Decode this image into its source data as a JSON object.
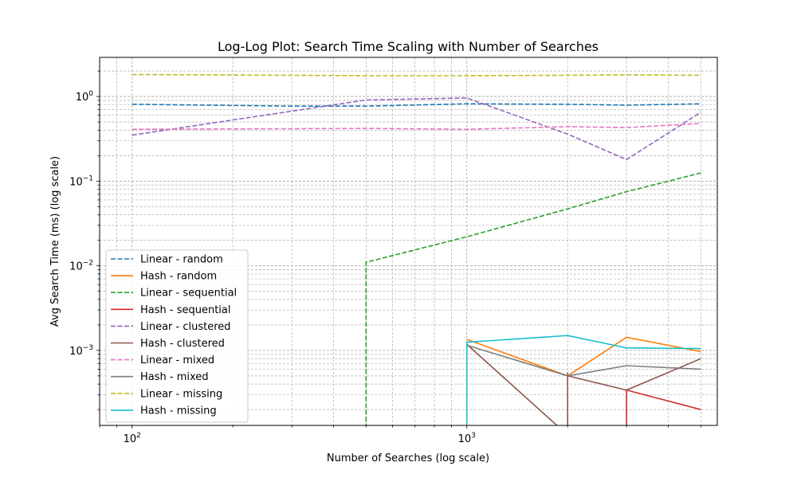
{
  "chart_data": {
    "type": "line",
    "title": "Log-Log Plot: Search Time Scaling with Number of Searches",
    "xlabel": "Number of Searches (log scale)",
    "ylabel": "Avg Search Time (ms) (log scale)",
    "xscale": "log",
    "yscale": "log",
    "xlim": [
      80,
      5600
    ],
    "ylim": [
      0.00013,
      2.9
    ],
    "x": [
      100,
      500,
      1000,
      2000,
      3000,
      5000
    ],
    "x_ticks": [
      {
        "value": 100,
        "base": "10",
        "exp": "2"
      },
      {
        "value": 1000,
        "base": "10",
        "exp": "3"
      }
    ],
    "y_ticks": [
      {
        "value": 0.001,
        "base": "10",
        "exp": "−3"
      },
      {
        "value": 0.01,
        "base": "10",
        "exp": "−2"
      },
      {
        "value": 0.1,
        "base": "10",
        "exp": "−1"
      },
      {
        "value": 1,
        "base": "10",
        "exp": "0"
      }
    ],
    "grid": "major and minor",
    "legend_position": "lower-left",
    "series": [
      {
        "name": "Linear - random",
        "color": "#1f77b4",
        "style": "dashed",
        "values": [
          0.81,
          0.77,
          0.77,
          0.82,
          0.81,
          0.79,
          0.82
        ],
        "x": [
          100,
          300,
          500,
          1000,
          2000,
          3000,
          5000
        ]
      },
      {
        "name": "Hash - random",
        "color": "#ff7f0e",
        "style": "solid",
        "x": [
          1000,
          2000,
          3000,
          5000
        ],
        "values": [
          0.00135,
          0.0005,
          0.00143,
          0.00097
        ]
      },
      {
        "name": "Linear - sequential",
        "color": "#2ca02c",
        "style": "dashed",
        "x": [
          500,
          500,
          1000,
          2000,
          3000,
          5000
        ],
        "values": [
          0.0001,
          0.011,
          0.022,
          0.047,
          0.075,
          0.125
        ]
      },
      {
        "name": "Hash - sequential",
        "color": "#d62728",
        "style": "solid",
        "x": [
          3000,
          3000,
          5000
        ],
        "values": [
          0.0001,
          0.00034,
          0.0002
        ]
      },
      {
        "name": "Linear - clustered",
        "color": "#9467bd",
        "style": "dashed",
        "x": [
          100,
          500,
          1000,
          2000,
          3000,
          5000
        ],
        "values": [
          0.35,
          0.91,
          0.96,
          0.36,
          0.18,
          0.65
        ]
      },
      {
        "name": "Hash - clustered",
        "color": "#8c564b",
        "style": "solid",
        "x": [
          1000,
          2000,
          2000,
          2000,
          3000,
          5000
        ],
        "values": [
          0.00118,
          0.0001,
          0.00055,
          0.0005,
          0.00034,
          0.0008
        ]
      },
      {
        "name": "Linear - mixed",
        "color": "#e377c2",
        "style": "dashed",
        "x": [
          100,
          500,
          1000,
          2000,
          3000,
          5000
        ],
        "values": [
          0.41,
          0.42,
          0.41,
          0.44,
          0.43,
          0.48
        ]
      },
      {
        "name": "Hash - mixed",
        "color": "#7f7f7f",
        "style": "solid",
        "x": [
          1000,
          2000,
          3000,
          5000
        ],
        "values": [
          0.00115,
          0.0005,
          0.00066,
          0.0006
        ]
      },
      {
        "name": "Linear - missing",
        "color": "#bcbd22",
        "style": "dashed",
        "x": [
          100,
          500,
          1000,
          2000,
          3000,
          5000
        ],
        "values": [
          1.82,
          1.76,
          1.76,
          1.78,
          1.8,
          1.78
        ]
      },
      {
        "name": "Hash - missing",
        "color": "#17becf",
        "style": "solid",
        "x": [
          1000,
          1000,
          2000,
          3000,
          5000
        ],
        "values": [
          0.0001,
          0.00125,
          0.0015,
          0.00107,
          0.00105
        ]
      }
    ]
  }
}
